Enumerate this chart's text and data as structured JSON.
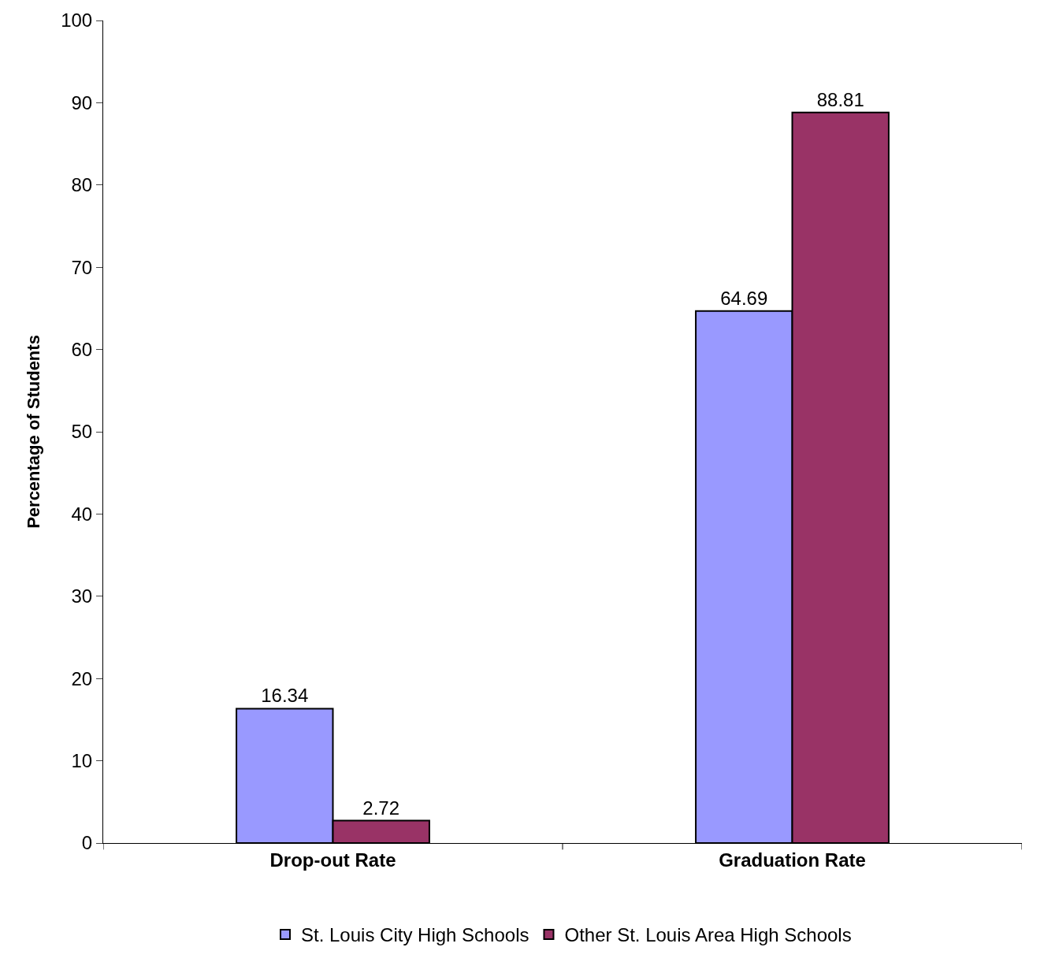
{
  "chart_data": {
    "type": "bar",
    "ylabel": "Percentage of Students",
    "categories": [
      "Drop-out Rate",
      "Graduation Rate"
    ],
    "series": [
      {
        "name": "St. Louis City High Schools",
        "color": "#9999ff",
        "values": [
          16.34,
          64.69
        ]
      },
      {
        "name": "Other St. Louis Area High Schools",
        "color": "#993366",
        "values": [
          2.72,
          88.81
        ]
      }
    ],
    "ylim": [
      0,
      100
    ],
    "yticks": [
      0,
      10,
      20,
      30,
      40,
      50,
      60,
      70,
      80,
      90,
      100
    ],
    "grid": false,
    "legend": "bottom",
    "data_labels": true
  }
}
